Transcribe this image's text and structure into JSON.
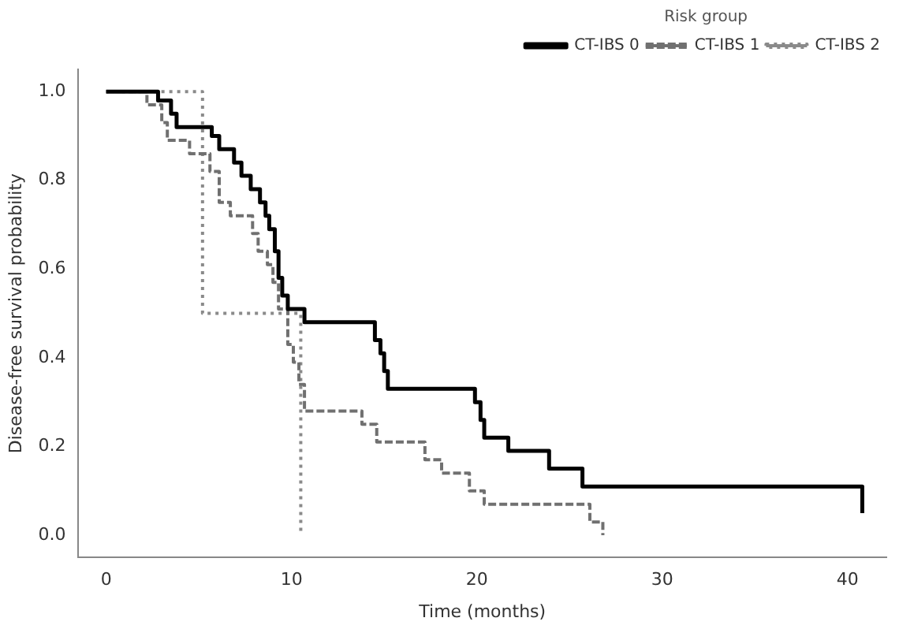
{
  "chart_data": {
    "type": "step",
    "xlabel": "Time (months)",
    "ylabel": "Disease-free survival probability",
    "legend": "top right",
    "legend_title": "Risk group",
    "xlim": [
      -1.5,
      42.1
    ],
    "xticks": [
      0,
      10,
      20,
      30,
      40
    ],
    "ylim": [
      -0.05,
      1.05
    ],
    "yticks": [
      {
        "value": 0,
        "label": "0.0"
      },
      {
        "value": 0.2,
        "label": "0.2"
      },
      {
        "value": 0.4,
        "label": "0.4"
      },
      {
        "value": 0.6,
        "label": "0.6"
      },
      {
        "value": 0.8,
        "label": "0.8"
      },
      {
        "value": 1,
        "label": "1.0"
      }
    ],
    "series": [
      {
        "name": "CT-IBS 0",
        "color": "#000000",
        "line_style": "solid",
        "x": [
          0,
          2.8,
          3.5,
          3.8,
          5.7,
          6.1,
          6.9,
          7.3,
          7.8,
          8.3,
          8.6,
          8.8,
          9.1,
          9.3,
          9.5,
          9.8,
          10.7,
          14.5,
          14.8,
          15.0,
          15.2,
          19.9,
          20.2,
          20.4,
          21.7,
          23.9,
          25.7,
          40.8
        ],
        "values": [
          1,
          0.98,
          0.95,
          0.92,
          0.9,
          0.87,
          0.84,
          0.81,
          0.78,
          0.75,
          0.72,
          0.69,
          0.64,
          0.58,
          0.54,
          0.51,
          0.48,
          0.44,
          0.41,
          0.37,
          0.33,
          0.3,
          0.26,
          0.22,
          0.19,
          0.15,
          0.11,
          0.05
        ]
      },
      {
        "name": "CT-IBS 1",
        "color": "#707070",
        "line_style": "dashed",
        "x": [
          0,
          2.2,
          3.0,
          3.3,
          4.5,
          5.6,
          6.1,
          6.7,
          7.9,
          8.2,
          8.7,
          9.0,
          9.3,
          9.8,
          10.1,
          10.4,
          10.7,
          13.8,
          14.6,
          17.2,
          18.1,
          19.6,
          20.4,
          26.1,
          26.8
        ],
        "values": [
          1,
          0.97,
          0.93,
          0.89,
          0.86,
          0.82,
          0.75,
          0.72,
          0.68,
          0.64,
          0.61,
          0.57,
          0.51,
          0.43,
          0.39,
          0.34,
          0.28,
          0.25,
          0.21,
          0.17,
          0.14,
          0.1,
          0.07,
          0.03,
          0.0
        ]
      },
      {
        "name": "CT-IBS 2",
        "color": "#8a8a8a",
        "line_style": "dotted",
        "x": [
          0,
          5.2,
          10.5
        ],
        "values": [
          1,
          0.5,
          0
        ]
      }
    ]
  }
}
